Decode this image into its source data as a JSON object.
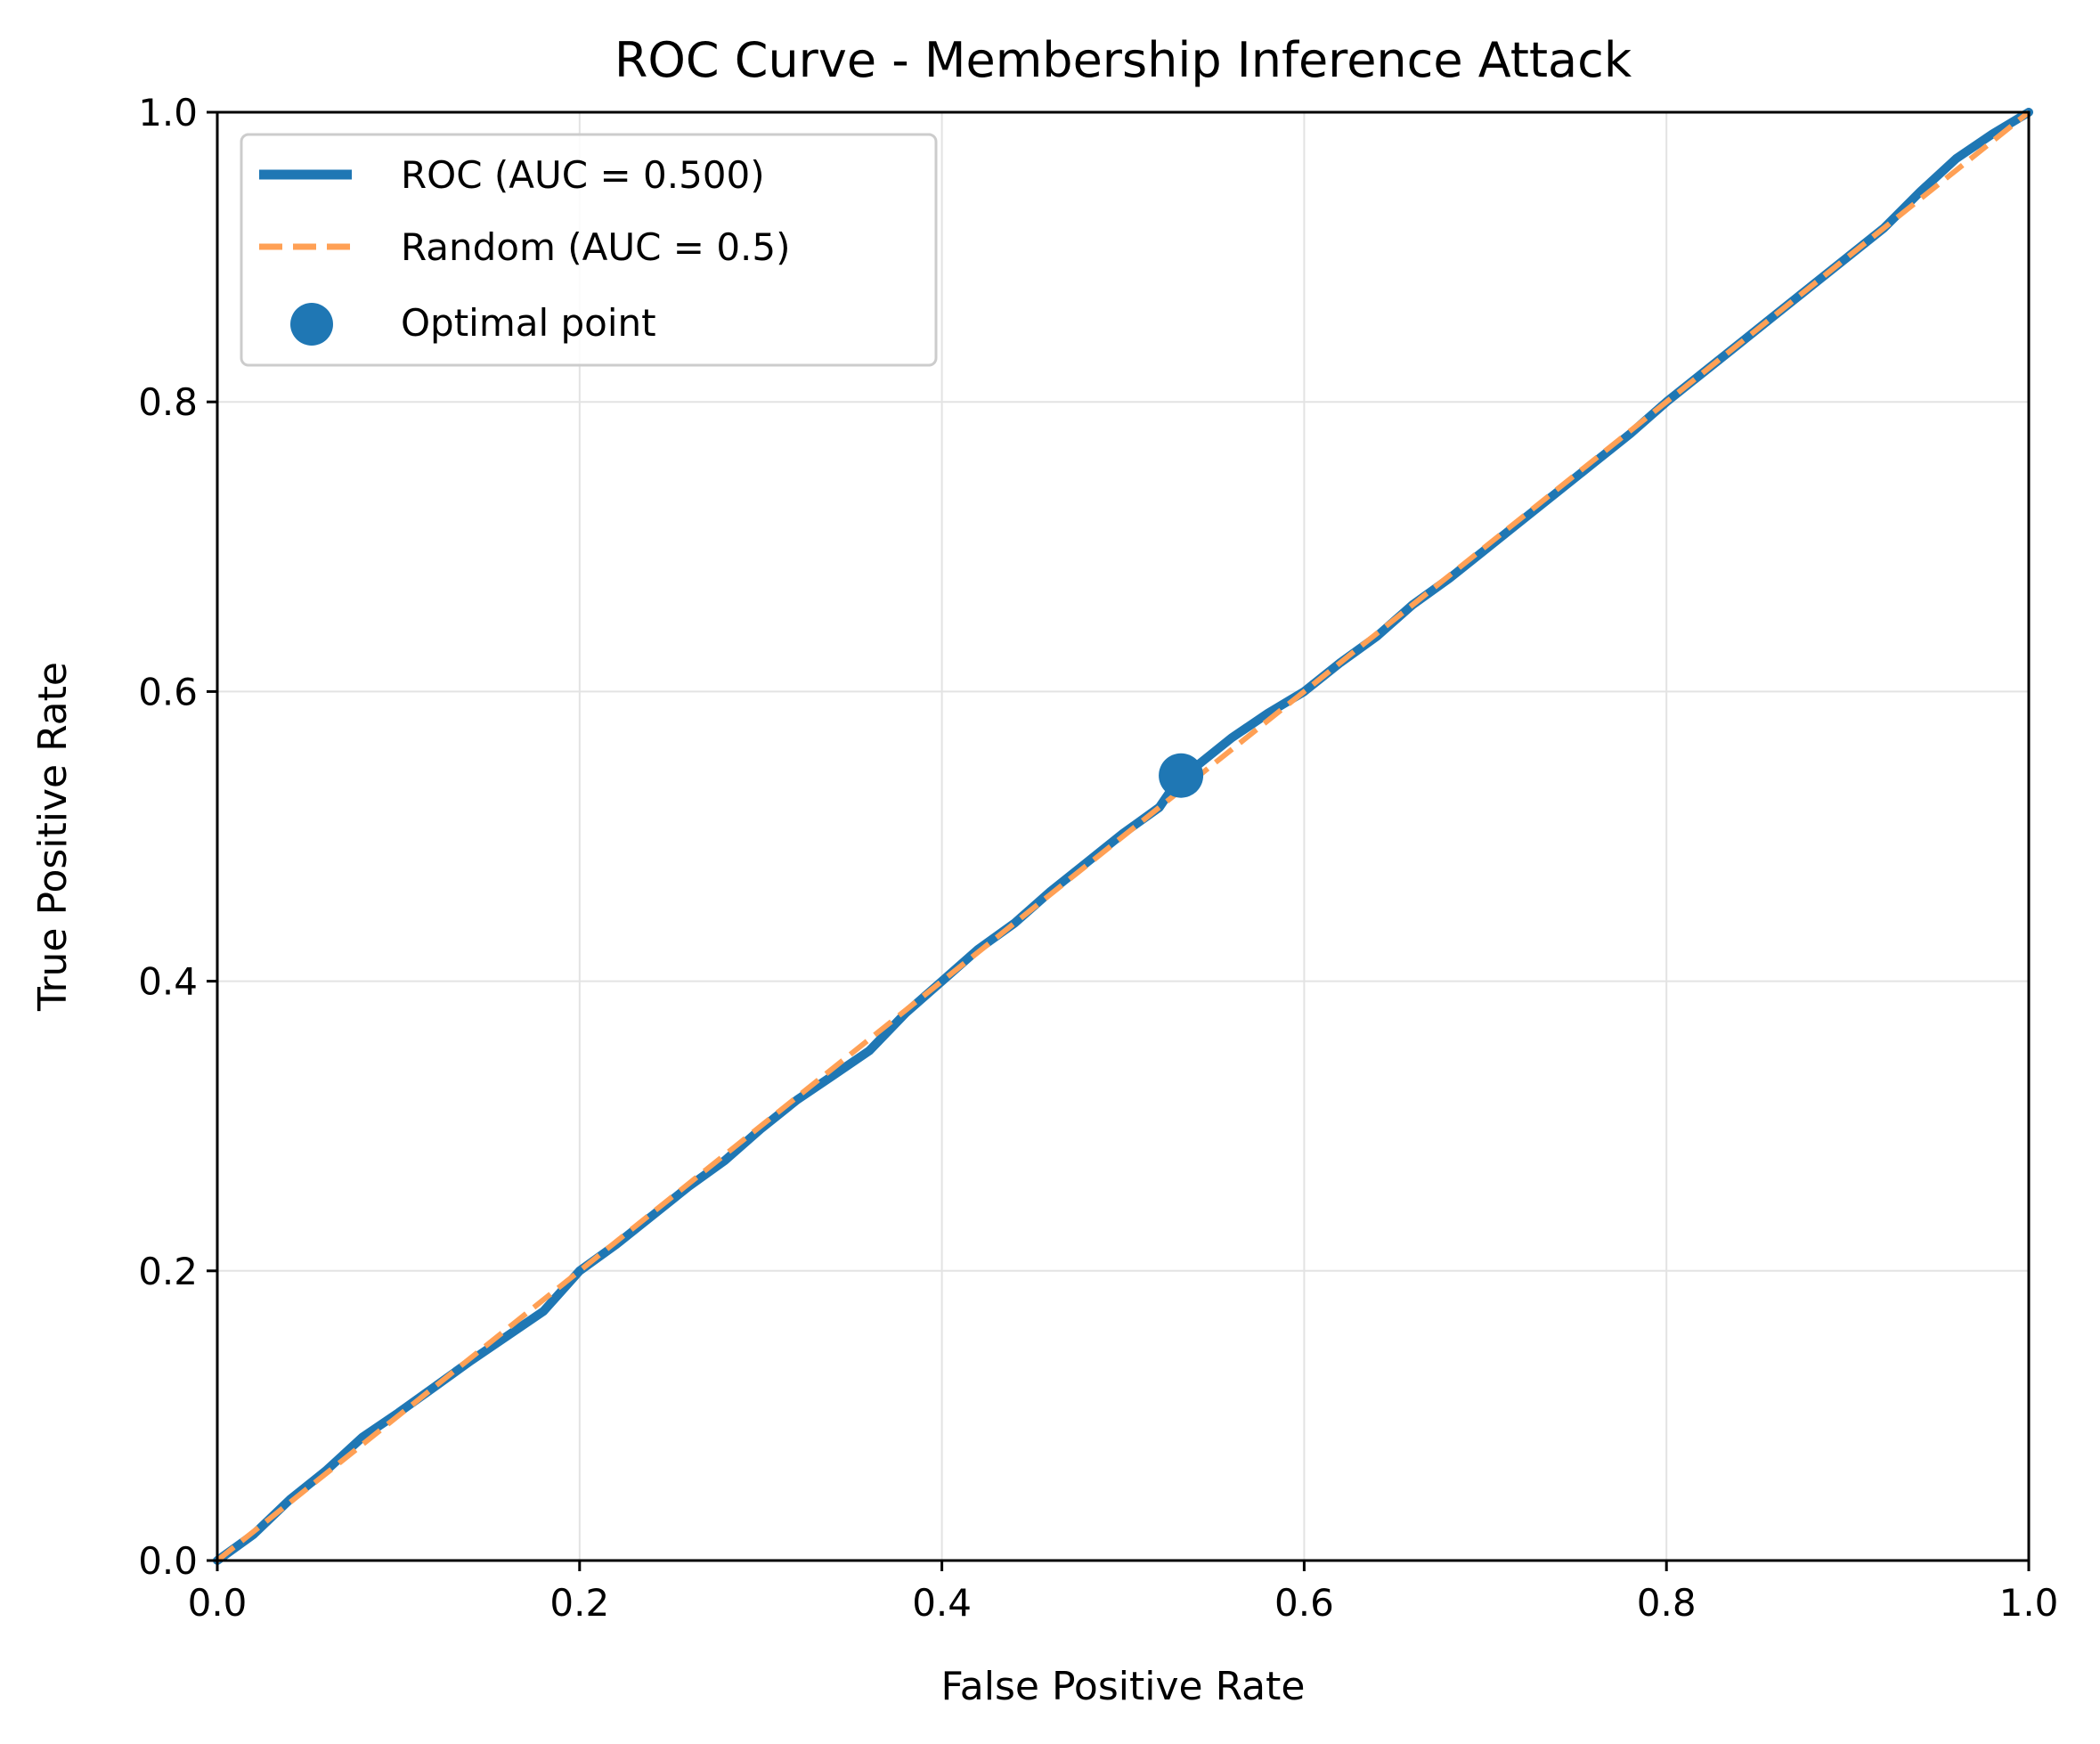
{
  "chart_data": {
    "type": "line",
    "title": "ROC Curve - Membership Inference Attack",
    "xlabel": "False Positive Rate",
    "ylabel": "True Positive Rate",
    "xlim": [
      0.0,
      1.0
    ],
    "ylim": [
      0.0,
      1.0
    ],
    "xticks": [
      "0.0",
      "0.2",
      "0.4",
      "0.6",
      "0.8",
      "1.0"
    ],
    "yticks": [
      "0.0",
      "0.2",
      "0.4",
      "0.6",
      "0.8",
      "1.0"
    ],
    "grid": true,
    "legend_position": "top-left",
    "series": [
      {
        "name": "ROC (AUC = 0.500)",
        "style": "solid",
        "color": "#1f77b4",
        "x": [
          0.0,
          0.02,
          0.04,
          0.06,
          0.08,
          0.1,
          0.12,
          0.14,
          0.16,
          0.18,
          0.2,
          0.22,
          0.24,
          0.26,
          0.28,
          0.3,
          0.32,
          0.34,
          0.36,
          0.38,
          0.4,
          0.42,
          0.44,
          0.46,
          0.48,
          0.5,
          0.52,
          0.532,
          0.54,
          0.56,
          0.58,
          0.6,
          0.62,
          0.64,
          0.66,
          0.68,
          0.7,
          0.72,
          0.74,
          0.76,
          0.78,
          0.8,
          0.82,
          0.84,
          0.86,
          0.88,
          0.9,
          0.92,
          0.94,
          0.96,
          0.98,
          1.0
        ],
        "y": [
          0.0,
          0.018,
          0.042,
          0.062,
          0.085,
          0.102,
          0.12,
          0.138,
          0.155,
          0.172,
          0.2,
          0.218,
          0.238,
          0.258,
          0.276,
          0.298,
          0.318,
          0.335,
          0.352,
          0.378,
          0.4,
          0.422,
          0.44,
          0.462,
          0.482,
          0.502,
          0.52,
          0.542,
          0.548,
          0.568,
          0.585,
          0.6,
          0.62,
          0.638,
          0.66,
          0.678,
          0.698,
          0.718,
          0.738,
          0.758,
          0.778,
          0.8,
          0.82,
          0.84,
          0.86,
          0.88,
          0.9,
          0.92,
          0.945,
          0.968,
          0.985,
          1.0
        ]
      },
      {
        "name": "Random (AUC = 0.5)",
        "style": "dashed",
        "color": "#ffa055",
        "x": [
          0.0,
          1.0
        ],
        "y": [
          0.0,
          1.0
        ]
      }
    ],
    "points": [
      {
        "name": "Optimal point",
        "x": 0.532,
        "y": 0.542,
        "color": "#1f77b4"
      }
    ]
  }
}
